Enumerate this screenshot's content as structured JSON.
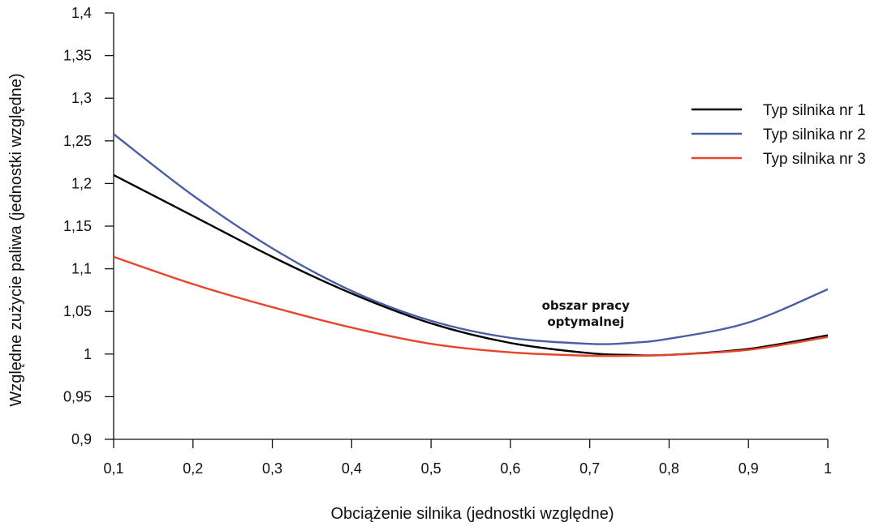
{
  "chart_data": {
    "type": "line",
    "xlabel": "Obciążenie silnika (jednostki względne)",
    "ylabel": "Względne zużycie paliwa (jednostki względne)",
    "xlim": [
      0.1,
      1.0
    ],
    "ylim": [
      0.9,
      1.4
    ],
    "x_ticks": [
      "0,1",
      "0,2",
      "0,3",
      "0,4",
      "0,5",
      "0,6",
      "0,7",
      "0,8",
      "0,9",
      "1"
    ],
    "y_ticks": [
      "0,9",
      "0,95",
      "1",
      "1,05",
      "1,1",
      "1,15",
      "1,2",
      "1,25",
      "1,3",
      "1,35",
      "1,4"
    ],
    "grid": false,
    "legend_position": "right",
    "x": [
      0.1,
      0.2,
      0.3,
      0.4,
      0.5,
      0.6,
      0.7,
      0.75,
      0.8,
      0.9,
      1.0
    ],
    "series": [
      {
        "name": "Typ silnika nr 1",
        "color": "#000000",
        "values": [
          1.21,
          1.162,
          1.114,
          1.071,
          1.036,
          1.013,
          1.001,
          0.999,
          0.999,
          1.006,
          1.022
        ]
      },
      {
        "name": "Typ silnika nr 2",
        "color": "#4a5ea5",
        "values": [
          1.258,
          1.186,
          1.124,
          1.074,
          1.039,
          1.019,
          1.012,
          1.013,
          1.018,
          1.037,
          1.076
        ]
      },
      {
        "name": "Typ silnika nr 3",
        "color": "#e8452b",
        "values": [
          1.114,
          1.082,
          1.055,
          1.031,
          1.012,
          1.002,
          0.998,
          0.998,
          0.999,
          1.005,
          1.02
        ]
      }
    ],
    "annotations": [
      {
        "lines": [
          "obszar pracy",
          "optymalnej"
        ],
        "x": 0.695,
        "y": 1.052
      }
    ]
  }
}
